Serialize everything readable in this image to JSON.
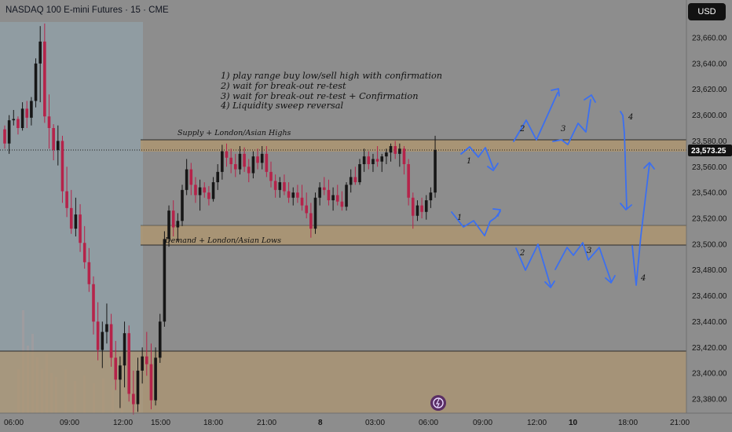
{
  "header": {
    "symbol_title": "NASDAQ 100 E-mini Futures · 15 · CME",
    "currency_button": "USD"
  },
  "price_axis": {
    "labels": [
      "23,660.00",
      "23,640.00",
      "23,620.00",
      "23,600.00",
      "23,580.00",
      "23,560.00",
      "23,540.00",
      "23,520.00",
      "23,500.00",
      "23,480.00",
      "23,460.00",
      "23,440.00",
      "23,420.00",
      "23,400.00",
      "23,380.00"
    ],
    "current_price": "23,573.25"
  },
  "time_axis": {
    "labels": [
      "06:00",
      "09:00",
      "12:00",
      "15:00",
      "18:00",
      "21:00",
      "8",
      "03:00",
      "06:00",
      "09:00",
      "12:00",
      "10",
      "18:00",
      "21:00"
    ]
  },
  "annotations": {
    "plan_notes": [
      "1) play range buy low/sell high with confirmation",
      "2) wait for break-out re-test",
      "3) wait for break-out re-test + Confirmation",
      "4) Liquidity sweep reversal"
    ],
    "supply_label": "Supply + London/Asian Highs",
    "demand_label": "Demand + London/Asian Lows",
    "scenario_markers": [
      "1",
      "1",
      "2",
      "3",
      "4",
      "2",
      "3",
      "4"
    ]
  },
  "colors": {
    "background": "#8d8d8d",
    "zone_fill": "#ad9571",
    "bull_candle": "#161616",
    "bear_candle": "#b5234a",
    "projection": "#3b6ff0",
    "session_highlight": "#92a2a9",
    "price_tag": "#121212"
  },
  "chart_data": {
    "type": "candlestick",
    "title": "NASDAQ 100 E-mini Futures · 15 · CME",
    "price_range": [
      23370,
      23675
    ],
    "candles": [
      [
        23589,
        23592,
        23574,
        23578
      ],
      [
        23578,
        23600,
        23570,
        23596
      ],
      [
        23596,
        23604,
        23592,
        23597
      ],
      [
        23597,
        23599,
        23585,
        23590
      ],
      [
        23590,
        23610,
        23588,
        23605
      ],
      [
        23605,
        23611,
        23590,
        23598
      ],
      [
        23598,
        23614,
        23592,
        23611
      ],
      [
        23611,
        23644,
        23606,
        23640
      ],
      [
        23640,
        23669,
        23610,
        23657
      ],
      [
        23657,
        23671,
        23594,
        23599
      ],
      [
        23599,
        23616,
        23574,
        23590
      ],
      [
        23590,
        23593,
        23565,
        23573
      ],
      [
        23573,
        23592,
        23561,
        23580
      ],
      [
        23580,
        23584,
        23532,
        23541
      ],
      [
        23541,
        23560,
        23521,
        23528
      ],
      [
        23528,
        23542,
        23508,
        23512
      ],
      [
        23512,
        23536,
        23506,
        23523
      ],
      [
        23523,
        23531,
        23494,
        23501
      ],
      [
        23501,
        23514,
        23481,
        23486
      ],
      [
        23486,
        23497,
        23463,
        23469
      ],
      [
        23469,
        23475,
        23430,
        23440
      ],
      [
        23440,
        23455,
        23410,
        23418
      ],
      [
        23418,
        23440,
        23404,
        23432
      ],
      [
        23432,
        23454,
        23423,
        23438
      ],
      [
        23438,
        23446,
        23405,
        23412
      ],
      [
        23412,
        23425,
        23387,
        23395
      ],
      [
        23395,
        23413,
        23373,
        23406
      ],
      [
        23406,
        23440,
        23389,
        23431
      ],
      [
        23431,
        23437,
        23378,
        23384
      ],
      [
        23384,
        23402,
        23368,
        23376
      ],
      [
        23376,
        23412,
        23370,
        23402
      ],
      [
        23402,
        23420,
        23392,
        23413
      ],
      [
        23413,
        23432,
        23398,
        23407
      ],
      [
        23407,
        23423,
        23372,
        23379
      ],
      [
        23379,
        23420,
        23375,
        23412
      ],
      [
        23412,
        23446,
        23408,
        23440
      ],
      [
        23440,
        23510,
        23436,
        23504
      ],
      [
        23504,
        23530,
        23498,
        23526
      ],
      [
        23526,
        23534,
        23506,
        23513
      ],
      [
        23513,
        23524,
        23502,
        23518
      ],
      [
        23518,
        23546,
        23514,
        23542
      ],
      [
        23542,
        23566,
        23538,
        23558
      ],
      [
        23558,
        23563,
        23538,
        23546
      ],
      [
        23546,
        23552,
        23532,
        23538
      ],
      [
        23538,
        23550,
        23526,
        23544
      ],
      [
        23544,
        23548,
        23536,
        23540
      ],
      [
        23540,
        23545,
        23530,
        23535
      ],
      [
        23535,
        23552,
        23533,
        23548
      ],
      [
        23548,
        23562,
        23542,
        23556
      ],
      [
        23556,
        23577,
        23550,
        23572
      ],
      [
        23572,
        23578,
        23560,
        23567
      ],
      [
        23567,
        23574,
        23555,
        23562
      ],
      [
        23562,
        23570,
        23552,
        23558
      ],
      [
        23558,
        23576,
        23554,
        23570
      ],
      [
        23570,
        23575,
        23556,
        23560
      ],
      [
        23560,
        23566,
        23548,
        23555
      ],
      [
        23555,
        23572,
        23551,
        23568
      ],
      [
        23568,
        23574,
        23558,
        23563
      ],
      [
        23563,
        23576,
        23558,
        23570
      ],
      [
        23570,
        23576,
        23552,
        23556
      ],
      [
        23556,
        23564,
        23544,
        23549
      ],
      [
        23549,
        23554,
        23536,
        23542
      ],
      [
        23542,
        23552,
        23536,
        23548
      ],
      [
        23548,
        23554,
        23538,
        23541
      ],
      [
        23541,
        23548,
        23532,
        23536
      ],
      [
        23536,
        23544,
        23530,
        23540
      ],
      [
        23540,
        23546,
        23532,
        23536
      ],
      [
        23536,
        23546,
        23526,
        23530
      ],
      [
        23530,
        23540,
        23520,
        23524
      ],
      [
        23524,
        23532,
        23505,
        23512
      ],
      [
        23512,
        23540,
        23508,
        23536
      ],
      [
        23536,
        23548,
        23530,
        23544
      ],
      [
        23544,
        23552,
        23538,
        23542
      ],
      [
        23542,
        23550,
        23530,
        23534
      ],
      [
        23534,
        23544,
        23526,
        23538
      ],
      [
        23538,
        23546,
        23530,
        23533
      ],
      [
        23533,
        23541,
        23526,
        23529
      ],
      [
        23529,
        23548,
        23526,
        23546
      ],
      [
        23546,
        23558,
        23540,
        23552
      ],
      [
        23552,
        23560,
        23546,
        23548
      ],
      [
        23548,
        23566,
        23546,
        23562
      ],
      [
        23562,
        23574,
        23556,
        23568
      ],
      [
        23568,
        23572,
        23558,
        23562
      ],
      [
        23562,
        23570,
        23556,
        23566
      ],
      [
        23566,
        23576,
        23560,
        23564
      ],
      [
        23564,
        23570,
        23556,
        23568
      ],
      [
        23568,
        23574,
        23562,
        23571
      ],
      [
        23571,
        23578,
        23564,
        23576
      ],
      [
        23576,
        23580,
        23566,
        23570
      ],
      [
        23570,
        23578,
        23560,
        23574
      ],
      [
        23574,
        23576,
        23554,
        23562
      ],
      [
        23562,
        23566,
        23530,
        23536
      ],
      [
        23536,
        23540,
        23512,
        23522
      ],
      [
        23522,
        23534,
        23518,
        23530
      ],
      [
        23530,
        23536,
        23520,
        23525
      ],
      [
        23525,
        23538,
        23519,
        23534
      ],
      [
        23534,
        23544,
        23528,
        23540
      ],
      [
        23540,
        23584,
        23536,
        23573
      ]
    ],
    "zones": [
      {
        "name": "Supply + London/Asian Highs",
        "from": 23572,
        "to": 23581
      },
      {
        "name": "Demand + London/Asian Lows",
        "from": 23500,
        "to": 23515
      },
      {
        "name": "",
        "from": 23370,
        "to": 23417
      }
    ],
    "current_price": 23573.25
  }
}
